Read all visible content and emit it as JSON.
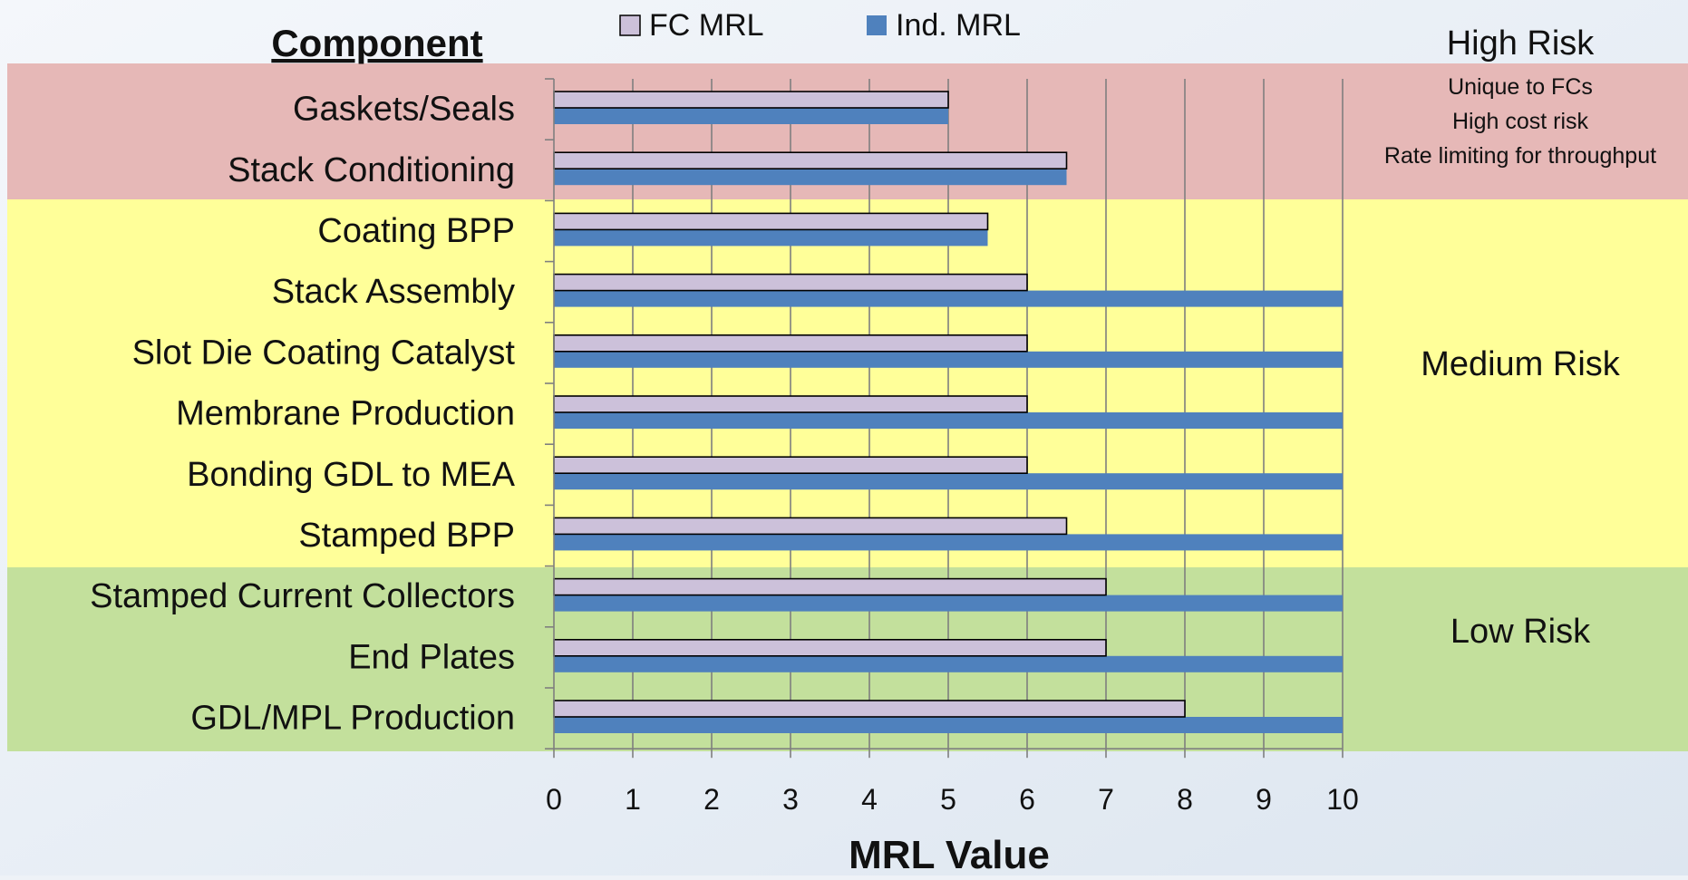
{
  "chart_data": {
    "type": "bar",
    "orientation": "horizontal",
    "categories": [
      "Gaskets/Seals",
      "Stack Conditioning",
      "Coating BPP",
      "Stack Assembly",
      "Slot Die Coating Catalyst",
      "Membrane Production",
      "Bonding GDL to MEA",
      "Stamped BPP",
      "Stamped Current Collectors",
      "End Plates",
      "GDL/MPL Production"
    ],
    "series": [
      {
        "name": "FC MRL",
        "color": "#ccc1da",
        "values": [
          5,
          6.5,
          5.5,
          6,
          6,
          6,
          6,
          6.5,
          7,
          7,
          8
        ]
      },
      {
        "name": "Ind. MRL",
        "color": "#4f81bd",
        "values": [
          5,
          6.5,
          5.5,
          10,
          10,
          10,
          10,
          10,
          10,
          10,
          10
        ]
      }
    ],
    "ylabel": "Component",
    "xlabel": "MRL Value",
    "xlim": [
      0,
      10
    ],
    "xticks": [
      "0",
      "1",
      "2",
      "3",
      "4",
      "5",
      "6",
      "7",
      "8",
      "9",
      "10"
    ],
    "grid": true,
    "legend": "top",
    "risk_bands": [
      {
        "label": "High Risk",
        "notes": [
          "Unique to FCs",
          "High cost risk",
          "Rate limiting for throughput"
        ],
        "color": "#e6b8b7",
        "first_category": 0,
        "last_category": 1
      },
      {
        "label": "Medium Risk",
        "notes": [],
        "color": "#ffff99",
        "first_category": 2,
        "last_category": 7
      },
      {
        "label": "Low Risk",
        "notes": [],
        "color": "#c3e09c",
        "first_category": 8,
        "last_category": 10
      }
    ]
  }
}
